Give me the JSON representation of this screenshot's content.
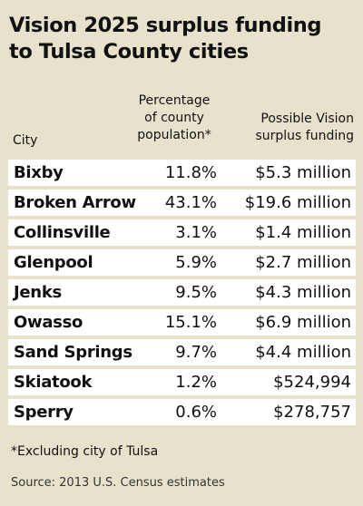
{
  "chart_data": {
    "type": "table",
    "title_lines": [
      "Vision 2025 surplus funding",
      "to Tulsa County cities"
    ],
    "columns": {
      "city": "City",
      "pct_lines": [
        "Percentage",
        "of county",
        "population*"
      ],
      "fund_lines": [
        "Possible Vision",
        "surplus funding"
      ]
    },
    "rows": [
      {
        "city": "Bixby",
        "pct": "11.8%",
        "fund": "$5.3 million"
      },
      {
        "city": "Broken Arrow",
        "pct": "43.1%",
        "fund": "$19.6 million"
      },
      {
        "city": "Collinsville",
        "pct": "3.1%",
        "fund": "$1.4 million"
      },
      {
        "city": "Glenpool",
        "pct": "5.9%",
        "fund": "$2.7 million"
      },
      {
        "city": "Jenks",
        "pct": "9.5%",
        "fund": "$4.3 million"
      },
      {
        "city": "Owasso",
        "pct": "15.1%",
        "fund": "$6.9 million"
      },
      {
        "city": "Sand Springs",
        "pct": "9.7%",
        "fund": "$4.4 million"
      },
      {
        "city": "Skiatook",
        "pct": "1.2%",
        "fund": "$524,994"
      },
      {
        "city": "Sperry",
        "pct": "0.6%",
        "fund": "$278,757"
      }
    ],
    "footnote": "*Excluding city of Tulsa",
    "source": "Source: 2013 U.S. Census estimates"
  },
  "colors": {
    "background": "#e8e2cc",
    "row_fill": "#ffffff"
  }
}
